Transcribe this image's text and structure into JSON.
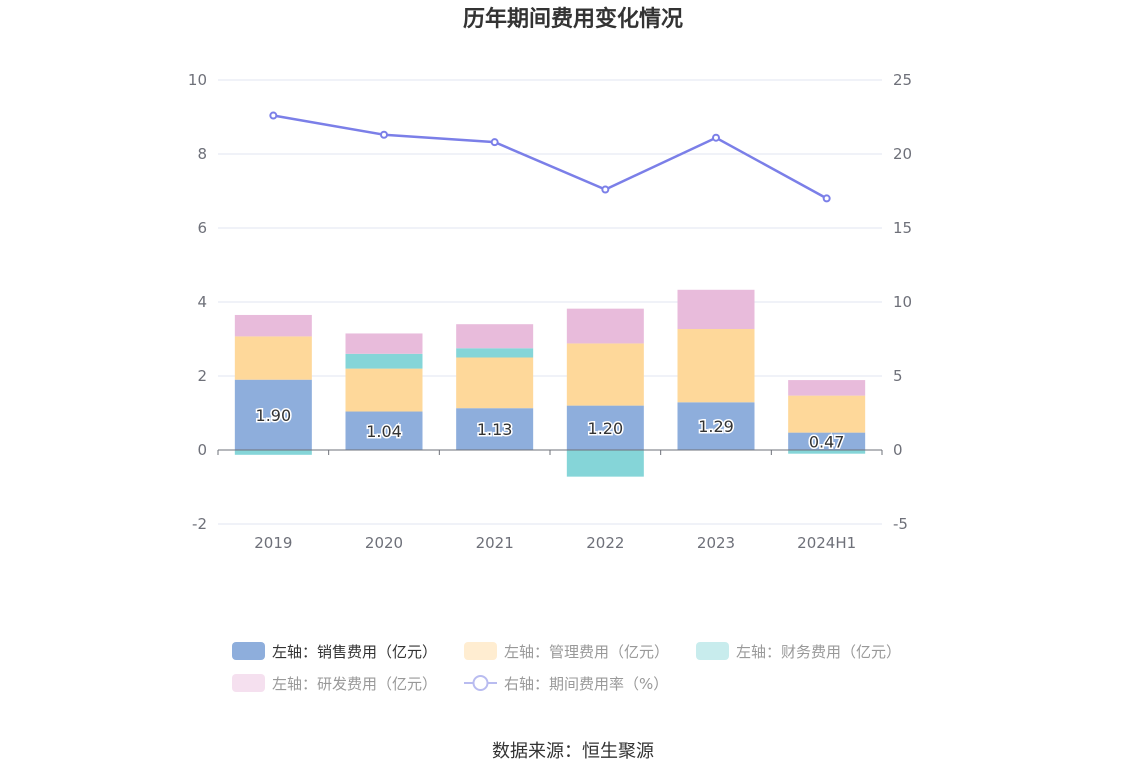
{
  "chart_data": {
    "type": "bar",
    "title": "历年期间费用变化情况",
    "categories": [
      "2019",
      "2020",
      "2021",
      "2022",
      "2023",
      "2024H1"
    ],
    "series": [
      {
        "name": "左轴：销售费用（亿元）",
        "type": "bar",
        "axis": "left",
        "color": "#8eaedc",
        "values": [
          1.9,
          1.04,
          1.13,
          1.2,
          1.29,
          0.47
        ],
        "labels": [
          "1.90",
          "1.04",
          "1.13",
          "1.20",
          "1.29",
          "0.47"
        ]
      },
      {
        "name": "左轴：管理费用（亿元）",
        "type": "bar",
        "axis": "left",
        "color": "#fed89a",
        "values": [
          1.17,
          1.16,
          1.37,
          1.68,
          1.98,
          1.0
        ]
      },
      {
        "name": "左轴：财务费用（亿元）",
        "type": "bar",
        "axis": "left",
        "color": "#85d5d8",
        "values": [
          -0.13,
          0.4,
          0.25,
          -0.72,
          -0.01,
          -0.1
        ]
      },
      {
        "name": "左轴：研发费用（亿元）",
        "type": "bar",
        "axis": "left",
        "color": "#e8bbdb",
        "values": [
          0.58,
          0.55,
          0.65,
          0.94,
          1.06,
          0.42
        ]
      },
      {
        "name": "右轴：期间费用率（%）",
        "type": "line",
        "axis": "right",
        "color": "#7b7fe8",
        "values": [
          22.6,
          21.3,
          20.8,
          17.6,
          21.1,
          17.0
        ]
      }
    ],
    "y_left": {
      "min": -2,
      "max": 10,
      "ticks": [
        "-2",
        "0",
        "2",
        "4",
        "6",
        "8",
        "10"
      ]
    },
    "y_right": {
      "min": -5,
      "max": 25,
      "ticks": [
        "-5",
        "0",
        "5",
        "10",
        "15",
        "20",
        "25"
      ]
    },
    "grid": true,
    "legend_position": "bottom",
    "source": "数据来源：恒生聚源"
  }
}
